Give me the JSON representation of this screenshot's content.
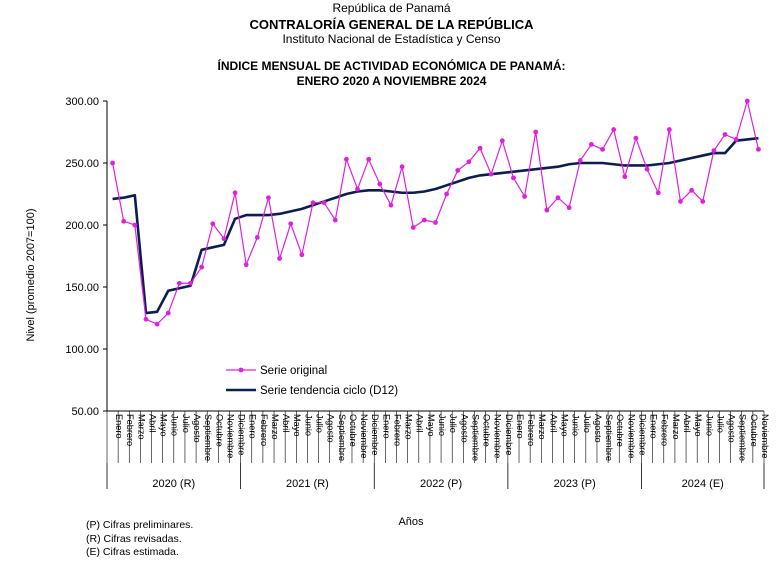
{
  "header": {
    "line1": "República de Panamá",
    "line2": "CONTRALORÍA GENERAL DE LA REPÚBLICA",
    "line3": "Instituto Nacional de Estadística y Censo"
  },
  "notes": [
    "(P) Cifras preliminares.",
    "(R) Cifras revisadas.",
    "(E) Cifras estimada."
  ],
  "chart_data": {
    "type": "line",
    "title": "ÍNDICE MENSUAL DE ACTIVIDAD ECONÓMICA DE PANAMÁ:",
    "subtitle": "ENERO 2020 A NOVIEMBRE 2024",
    "ylabel": "Nivel (promedio 2007=100)",
    "xlabel": "Años",
    "ylim": [
      50,
      300
    ],
    "yticks": [
      "50.00",
      "100.00",
      "150.00",
      "200.00",
      "250.00",
      "300.00"
    ],
    "months": [
      "Enero",
      "Febrero",
      "Marzo",
      "Abril",
      "Mayo",
      "Junio",
      "Julio",
      "Agosto",
      "Septiembre",
      "Octubre",
      "Noviembre",
      "Diciembre"
    ],
    "years": [
      {
        "label": "2020 (R)",
        "months": 12
      },
      {
        "label": "2021 (R)",
        "months": 12
      },
      {
        "label": "2022 (P)",
        "months": 12
      },
      {
        "label": "2023 (P)",
        "months": 12
      },
      {
        "label": "2024 (E)",
        "months": 11
      }
    ],
    "legend_position": "lower-left inside plot",
    "series": [
      {
        "name": "Serie original",
        "color": "#e020e0",
        "marker": "circle",
        "values": [
          250,
          203,
          200,
          124,
          120,
          129,
          153,
          153,
          166,
          201,
          189,
          226,
          168,
          190,
          222,
          173,
          201,
          176,
          218,
          218,
          204,
          253,
          229,
          253,
          233,
          216,
          247,
          198,
          204,
          202,
          225,
          244,
          251,
          262,
          241,
          268,
          238,
          223,
          275,
          212,
          222,
          214,
          252,
          265,
          261,
          277,
          239,
          270,
          245,
          226,
          277,
          219,
          228,
          219,
          260,
          273,
          269,
          300,
          261
        ]
      },
      {
        "name": "Serie tendencia ciclo (D12)",
        "color": "#0b1d51",
        "marker": "none",
        "values": [
          221,
          222,
          224,
          129,
          130,
          147,
          149,
          151,
          180,
          182,
          184,
          205,
          208,
          208,
          208,
          209,
          211,
          213,
          216,
          219,
          222,
          225,
          227,
          228,
          228,
          227,
          226,
          226,
          227,
          229,
          232,
          235,
          238,
          240,
          241,
          242,
          243,
          244,
          245,
          246,
          247,
          249,
          250,
          250,
          250,
          249,
          248,
          248,
          248,
          249,
          250,
          252,
          254,
          256,
          258,
          258,
          268,
          269,
          270
        ]
      }
    ]
  }
}
